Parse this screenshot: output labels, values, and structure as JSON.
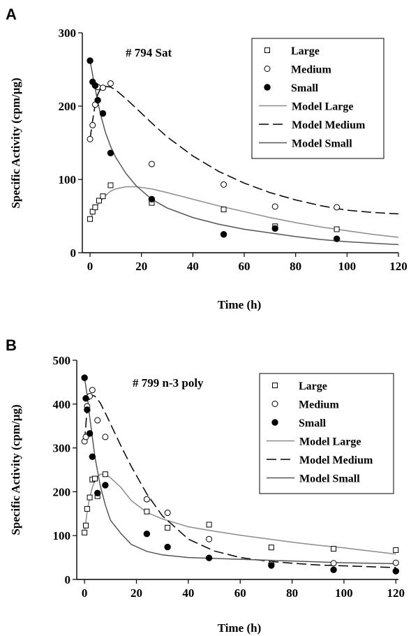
{
  "chart_data": [
    {
      "type": "scatter",
      "panel_label": "A",
      "annotation": "# 794 Sat",
      "xlabel": "Time (h)",
      "ylabel": "Specific Activity (cpm/µg)",
      "xlim": [
        -3,
        120
      ],
      "ylim": [
        0,
        300
      ],
      "xticks": [
        0,
        20,
        40,
        60,
        80,
        100,
        120
      ],
      "yticks": [
        0,
        100,
        200,
        300
      ],
      "legend_position": "top-right",
      "series": [
        {
          "name": "Large",
          "kind": "points",
          "marker": "square-open",
          "x": [
            0,
            1,
            2,
            3.5,
            5,
            8,
            24,
            52,
            72,
            96
          ],
          "y": [
            46,
            56,
            62,
            71,
            77,
            92,
            68,
            59,
            36,
            32
          ]
        },
        {
          "name": "Medium",
          "kind": "points",
          "marker": "circle-open",
          "x": [
            0,
            1,
            2,
            3,
            5,
            8,
            24,
            52,
            72,
            96
          ],
          "y": [
            155,
            174,
            202,
            226,
            225,
            231,
            121,
            93,
            63,
            62
          ]
        },
        {
          "name": "Small",
          "kind": "points",
          "marker": "circle-filled",
          "x": [
            0,
            1,
            2,
            3,
            5,
            8,
            24,
            52,
            72,
            96
          ],
          "y": [
            262,
            233,
            228,
            208,
            190,
            136,
            73,
            25,
            33,
            19
          ]
        },
        {
          "name": "Model Large",
          "kind": "line",
          "style": "solid",
          "color": "#8c8c8c",
          "x": [
            0,
            2,
            4,
            6,
            8,
            10,
            14,
            18,
            24,
            30,
            40,
            50,
            60,
            70,
            80,
            90,
            100,
            110,
            120
          ],
          "y": [
            46,
            60,
            70,
            78,
            84,
            87,
            90,
            90,
            87,
            82,
            73,
            64,
            56,
            48,
            41,
            35,
            30,
            25,
            21
          ]
        },
        {
          "name": "Model Medium",
          "kind": "line",
          "style": "dashed",
          "color": "#000000",
          "x": [
            0,
            1,
            2,
            3,
            4,
            6,
            8,
            10,
            14,
            18,
            24,
            30,
            40,
            50,
            60,
            70,
            80,
            90,
            100,
            110,
            120
          ],
          "y": [
            155,
            180,
            202,
            216,
            223,
            227,
            226,
            222,
            210,
            197,
            177,
            158,
            132,
            111,
            95,
            82,
            72,
            64,
            58,
            55,
            53
          ]
        },
        {
          "name": "Model Small",
          "kind": "line",
          "style": "solid",
          "color": "#555555",
          "x": [
            0,
            1,
            2,
            3,
            4,
            6,
            8,
            10,
            14,
            18,
            24,
            30,
            40,
            50,
            60,
            70,
            80,
            90,
            100,
            110,
            120
          ],
          "y": [
            262,
            243,
            224,
            206,
            190,
            164,
            145,
            130,
            108,
            91,
            73,
            61,
            48,
            39,
            32,
            27,
            22,
            18,
            15,
            13,
            11
          ]
        }
      ]
    },
    {
      "type": "scatter",
      "panel_label": "B",
      "annotation": "# 799 n-3 poly",
      "xlabel": "Time (h)",
      "ylabel": "Specific Activity (cpm/µg)",
      "xlim": [
        -3,
        121
      ],
      "ylim": [
        0,
        500
      ],
      "xticks": [
        0,
        20,
        40,
        60,
        80,
        100,
        120
      ],
      "yticks": [
        0,
        100,
        200,
        300,
        400,
        500
      ],
      "legend_position": "top-right",
      "series": [
        {
          "name": "Large",
          "kind": "points",
          "marker": "square-open",
          "x": [
            0,
            0.5,
            1,
            2,
            3,
            4,
            5,
            8,
            24,
            32,
            48,
            72,
            96,
            120
          ],
          "y": [
            107,
            123,
            161,
            187,
            228,
            230,
            190,
            240,
            155,
            118,
            125,
            73,
            70,
            67
          ]
        },
        {
          "name": "Medium",
          "kind": "points",
          "marker": "circle-open",
          "x": [
            0,
            0.5,
            1,
            2,
            3,
            5,
            8,
            24,
            32,
            48,
            72,
            96,
            120
          ],
          "y": [
            315,
            325,
            395,
            418,
            432,
            363,
            325,
            183,
            152,
            92,
            35,
            37,
            38
          ]
        },
        {
          "name": "Small",
          "kind": "points",
          "marker": "circle-filled",
          "x": [
            0,
            0.5,
            1,
            2,
            3,
            5,
            8,
            24,
            32,
            48,
            72,
            96,
            120
          ],
          "y": [
            460,
            413,
            387,
            333,
            280,
            197,
            215,
            104,
            74,
            49,
            32,
            22,
            19
          ]
        },
        {
          "name": "Model Large",
          "kind": "line",
          "style": "solid",
          "color": "#8c8c8c",
          "x": [
            0,
            1,
            2,
            3,
            4,
            6,
            8,
            10,
            14,
            18,
            24,
            30,
            40,
            50,
            60,
            70,
            80,
            90,
            100,
            110,
            120
          ],
          "y": [
            107,
            155,
            188,
            210,
            225,
            240,
            240,
            232,
            210,
            180,
            153,
            138,
            120,
            110,
            101,
            93,
            85,
            78,
            72,
            65,
            58
          ]
        },
        {
          "name": "Model Medium",
          "kind": "line",
          "style": "dashed",
          "color": "#000000",
          "x": [
            0,
            1,
            2,
            3,
            4,
            6,
            8,
            10,
            14,
            18,
            24,
            30,
            40,
            50,
            60,
            70,
            80,
            90,
            100,
            110,
            120
          ],
          "y": [
            315,
            390,
            415,
            420,
            418,
            403,
            380,
            355,
            305,
            258,
            195,
            145,
            92,
            65,
            50,
            42,
            37,
            33,
            31,
            29,
            27
          ]
        },
        {
          "name": "Model Small",
          "kind": "line",
          "style": "solid",
          "color": "#555555",
          "x": [
            0,
            1,
            2,
            3,
            4,
            6,
            8,
            10,
            14,
            18,
            24,
            30,
            40,
            50,
            60,
            70,
            80,
            90,
            100,
            110,
            120
          ],
          "y": [
            460,
            420,
            370,
            325,
            280,
            215,
            170,
            135,
            105,
            80,
            64,
            56,
            50,
            48,
            46,
            44,
            42,
            40,
            38,
            37,
            36
          ]
        }
      ]
    }
  ]
}
